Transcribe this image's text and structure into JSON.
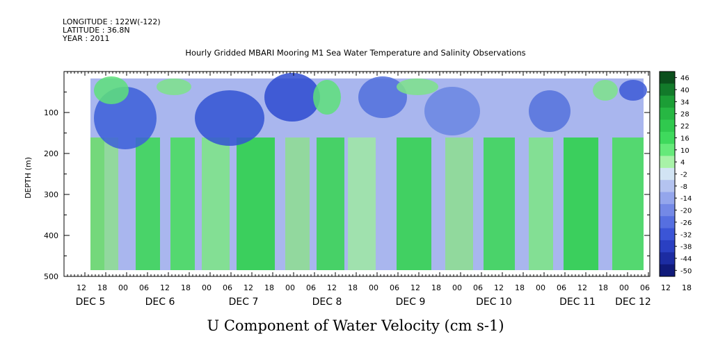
{
  "header": {
    "longitude": "LONGITUDE : 122W(-122)",
    "latitude": "LATITUDE : 36.8N",
    "year": "YEAR : 2011"
  },
  "chart_data": {
    "type": "heatmap",
    "title": "Hourly Gridded MBARI Mooring M1 Sea Water Temperature and Salinity Observations",
    "xlabel": "U Component of Water Velocity (cm s-1)",
    "ylabel": "DEPTH (m)",
    "ylim": [
      500,
      0
    ],
    "y_ticks": [
      100,
      200,
      300,
      400,
      500
    ],
    "y_tick_labels": [
      "100",
      "200",
      "300",
      "400",
      "500"
    ],
    "x_hour_ticks": [
      "12",
      "18",
      "00",
      "06",
      "12",
      "18",
      "00",
      "06",
      "12",
      "18",
      "00",
      "06",
      "12",
      "18",
      "00",
      "06",
      "12",
      "18",
      "00",
      "06",
      "12",
      "18",
      "00",
      "06",
      "12",
      "18",
      "00",
      "06",
      "12",
      "18",
      "00",
      "06"
    ],
    "x_day_labels": [
      "DEC 5",
      "DEC 6",
      "DEC 7",
      "DEC 8",
      "DEC 9",
      "DEC 10",
      "DEC 11",
      "DEC 12"
    ],
    "colorbar": {
      "labels": [
        "46",
        "40",
        "34",
        "28",
        "22",
        "16",
        "10",
        "4",
        "-2",
        "-8",
        "-14",
        "-20",
        "-26",
        "-32",
        "-38",
        "-44",
        "-50"
      ],
      "colors": [
        "#0b4f1c",
        "#127a2a",
        "#1c9e36",
        "#27b743",
        "#30c94e",
        "#3fd95d",
        "#66e97a",
        "#a8f2a8",
        "#d2e4f4",
        "#b4c3f0",
        "#94a6ec",
        "#7489e6",
        "#566fe0",
        "#3b55d6",
        "#2a40c2",
        "#1c2ca2",
        "#101a7a"
      ]
    }
  }
}
